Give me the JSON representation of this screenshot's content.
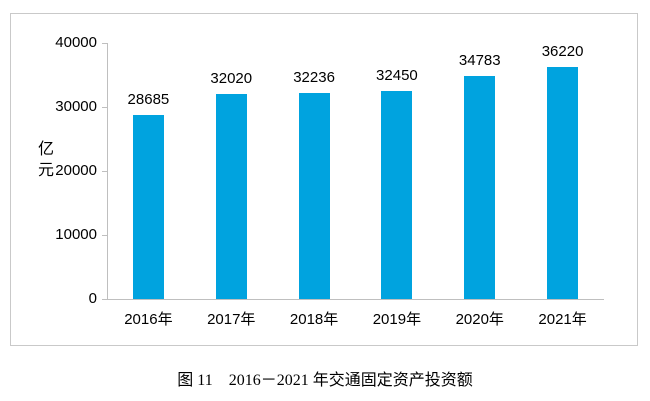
{
  "chart_data": {
    "type": "bar",
    "categories": [
      "2016年",
      "2017年",
      "2018年",
      "2019年",
      "2020年",
      "2021年"
    ],
    "values": [
      28685,
      32020,
      32236,
      32450,
      34783,
      36220
    ],
    "title": "图 11　2016－2021 年交通固定资产投资额",
    "xlabel": "",
    "ylabel": "亿元",
    "ylim": [
      0,
      40000
    ],
    "yticks": [
      0,
      10000,
      20000,
      30000,
      40000
    ],
    "bar_color": "#00a3df",
    "axis_color": "#bfbfbf",
    "grid": false,
    "legend": false,
    "value_labels_shown": true
  },
  "caption": {
    "text": "图 11　2016－2021 年交通固定资产投资额"
  }
}
